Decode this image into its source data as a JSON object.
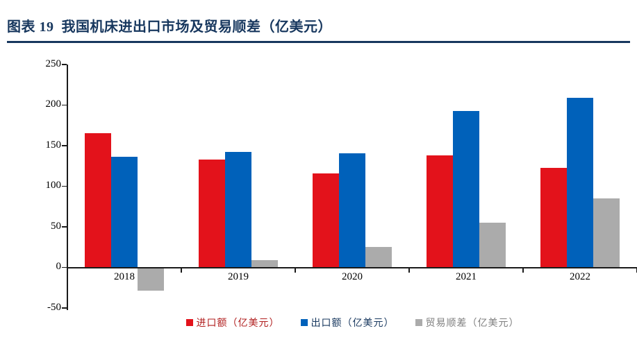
{
  "theme": {
    "background": "#FFFFFF",
    "accent_navy": "#17375E",
    "axis_color": "#1A1A1A"
  },
  "chart_data": {
    "type": "bar",
    "title": "图表 19  我国机床进出口市场及贸易顺差（亿美元）",
    "categories": [
      "2018",
      "2019",
      "2020",
      "2021",
      "2022"
    ],
    "series": [
      {
        "id": "imports",
        "name": "进口额（亿美元）",
        "color": "#E3121B",
        "label_color": "#B01E1E",
        "values": [
          165,
          133,
          116,
          138,
          123
        ]
      },
      {
        "id": "exports",
        "name": "出口额（亿美元）",
        "color": "#0061BA",
        "label_color": "#17375E",
        "values": [
          136,
          142,
          141,
          193,
          209
        ]
      },
      {
        "id": "surplus",
        "name": "贸易顺差（亿美元）",
        "color": "#ABABAB",
        "label_color": "#7F7F7F",
        "values": [
          -29,
          9,
          25,
          55,
          85
        ]
      }
    ],
    "xlabel": "",
    "ylabel": "",
    "ylim": [
      -50,
      250
    ],
    "yticks": [
      250,
      200,
      150,
      100,
      50,
      0,
      -50
    ],
    "grid": false,
    "legend_position": "bottom"
  }
}
